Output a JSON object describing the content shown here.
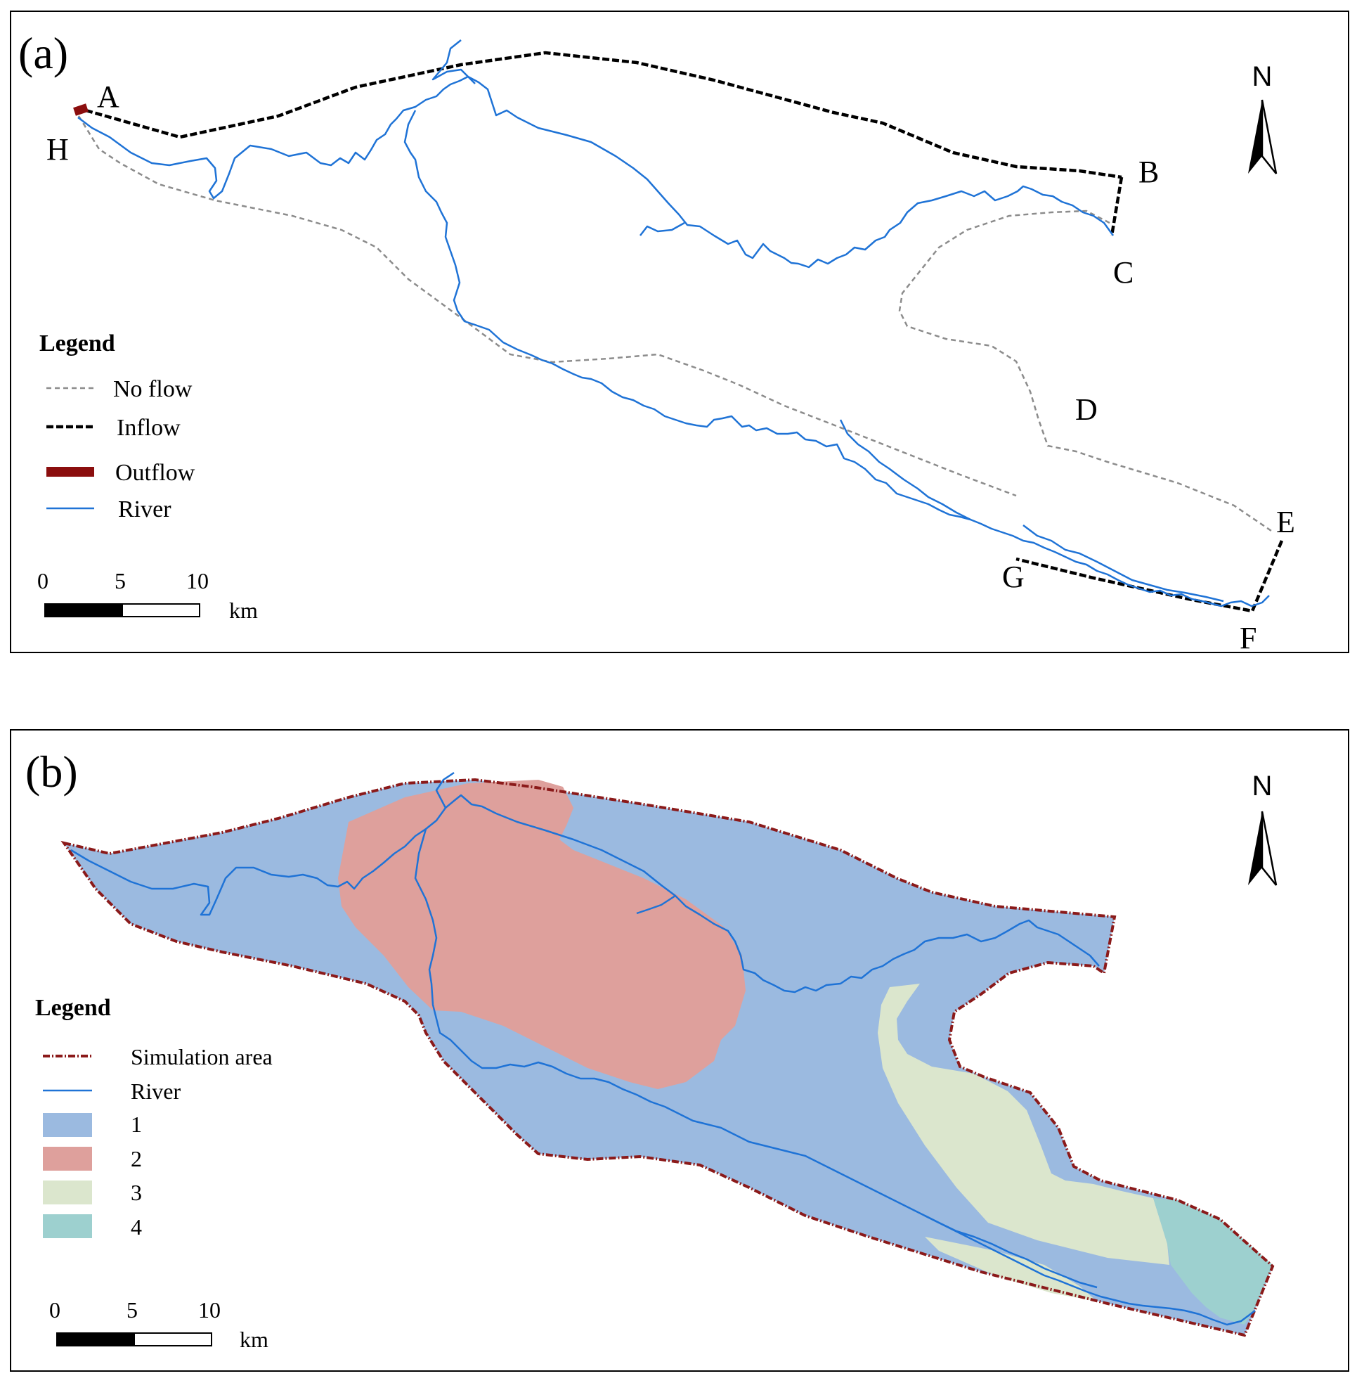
{
  "colors": {
    "no_flow": "#8c8c8c",
    "inflow": "#000000",
    "outflow": "#8b0e0e",
    "river": "#1f73d6",
    "simulation_area": "#8b1a1a",
    "zone_1": "#9bbae0",
    "zone_2": "#dea09c",
    "zone_3": "#dbe6cd",
    "zone_4": "#9dd0cf"
  },
  "panel_a": {
    "panel_label": "(a)",
    "north_label": "N",
    "point_labels": {
      "A": "A",
      "B": "B",
      "C": "C",
      "D": "D",
      "E": "E",
      "F": "F",
      "G": "G",
      "H": "H"
    },
    "legend": {
      "title": "Legend",
      "items": [
        {
          "label": "No flow",
          "symbol": "dashed-gray-line"
        },
        {
          "label": "Inflow",
          "symbol": "dashed-black-line"
        },
        {
          "label": "Outflow",
          "symbol": "solid-dark-red-bar"
        },
        {
          "label": "River",
          "symbol": "solid-blue-line"
        }
      ]
    },
    "scale": {
      "ticks": [
        "0",
        "5",
        "10"
      ],
      "unit": "km"
    }
  },
  "panel_b": {
    "panel_label": "(b)",
    "north_label": "N",
    "legend": {
      "title": "Legend",
      "items": [
        {
          "label": "Simulation area",
          "symbol": "dash-dot-red-line"
        },
        {
          "label": "River",
          "symbol": "solid-blue-line"
        },
        {
          "label": "1",
          "symbol": "blue-fill"
        },
        {
          "label": "2",
          "symbol": "pink-fill"
        },
        {
          "label": "3",
          "symbol": "light-green-fill"
        },
        {
          "label": "4",
          "symbol": "teal-fill"
        }
      ]
    },
    "scale": {
      "ticks": [
        "0",
        "5",
        "10"
      ],
      "unit": "km"
    }
  }
}
